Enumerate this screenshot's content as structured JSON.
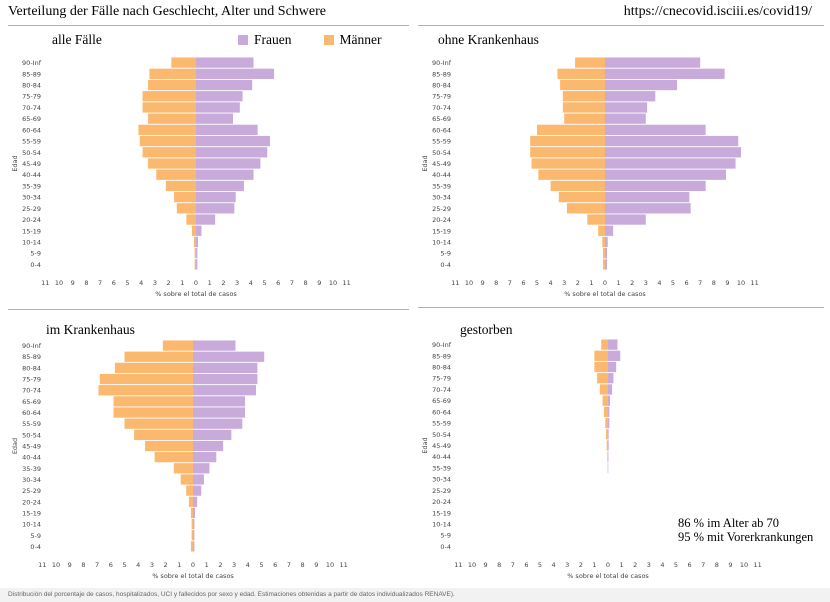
{
  "header": {
    "title": "Verteilung der Fälle nach Geschlecht, Alter und Schwere",
    "url": "https://cnecovid.isciii.es/covid19/"
  },
  "legend": {
    "female": "Frauen",
    "male": "Männer"
  },
  "colors": {
    "female": "#c9abdb",
    "male": "#fbb970"
  },
  "notes": {
    "line1": "86 % im Alter ab 70",
    "line2": "95 % mit Vorerkrankungen"
  },
  "footer": "Distribución del porcentaje de casos, hospitalizados, UCI y fallecidos por sexo y edad. Estimaciones obtenidas a partir de datos individualizados RENAVE).",
  "chart_data": [
    {
      "type": "bar",
      "title": "alle Fälle",
      "ylabel": "Edad",
      "xlabel": "% sobre el total de casos",
      "xticks": [
        "11",
        "10",
        "9",
        "8",
        "7",
        "6",
        "5",
        "4",
        "3",
        "2",
        "1",
        "0",
        "1",
        "2",
        "3",
        "4",
        "5",
        "6",
        "7",
        "8",
        "9",
        "10",
        "11"
      ],
      "categories": [
        "90-Inf",
        "85-89",
        "80-84",
        "75-79",
        "70-74",
        "65-69",
        "60-64",
        "55-59",
        "50-54",
        "45-49",
        "40-44",
        "35-39",
        "30-34",
        "25-29",
        "20-24",
        "15-19",
        "10-14",
        "5-9",
        "0-4"
      ],
      "series": [
        {
          "name": "Frauen",
          "values": [
            4.2,
            5.7,
            4.1,
            3.4,
            3.2,
            2.7,
            4.5,
            5.4,
            5.2,
            4.7,
            4.2,
            3.5,
            2.9,
            2.8,
            1.4,
            0.4,
            0.15,
            0.1,
            0.1
          ]
        },
        {
          "name": "Männer",
          "values": [
            1.8,
            3.4,
            3.5,
            3.9,
            3.9,
            3.5,
            4.2,
            4.1,
            3.9,
            3.5,
            2.9,
            2.2,
            1.6,
            1.4,
            0.7,
            0.3,
            0.15,
            0.1,
            0.1
          ]
        }
      ]
    },
    {
      "type": "bar",
      "title": "ohne Krankenhaus",
      "ylabel": "Edad",
      "xlabel": "% sobre el total de casos",
      "xticks": [
        "11",
        "10",
        "9",
        "8",
        "7",
        "6",
        "5",
        "4",
        "3",
        "2",
        "1",
        "0",
        "1",
        "2",
        "3",
        "4",
        "5",
        "6",
        "7",
        "8",
        "9",
        "10",
        "11"
      ],
      "categories": [
        "90-Inf",
        "85-89",
        "80-84",
        "75-79",
        "70-74",
        "65-69",
        "60-64",
        "55-59",
        "50-54",
        "45-49",
        "40-44",
        "35-39",
        "30-34",
        "25-29",
        "20-24",
        "15-19",
        "10-14",
        "5-9",
        "0-4"
      ],
      "series": [
        {
          "name": "Frauen",
          "values": [
            7.0,
            8.8,
            5.3,
            3.7,
            3.1,
            3.0,
            7.4,
            9.8,
            10.0,
            9.6,
            8.9,
            7.4,
            6.2,
            6.3,
            3.0,
            0.6,
            0.2,
            0.15,
            0.15
          ]
        },
        {
          "name": "Männer",
          "values": [
            2.2,
            3.5,
            3.3,
            3.1,
            3.1,
            3.0,
            5.0,
            5.5,
            5.5,
            5.4,
            4.9,
            4.0,
            3.4,
            2.8,
            1.3,
            0.5,
            0.2,
            0.15,
            0.15
          ]
        }
      ]
    },
    {
      "type": "bar",
      "title": "im Krankenhaus",
      "ylabel": "Edad",
      "xlabel": "% sobre el total de casos",
      "xticks": [
        "11",
        "10",
        "9",
        "8",
        "7",
        "6",
        "5",
        "4",
        "3",
        "2",
        "1",
        "0",
        "1",
        "2",
        "3",
        "4",
        "5",
        "6",
        "7",
        "8",
        "9",
        "10",
        "11"
      ],
      "categories": [
        "90-Inf",
        "85-89",
        "80-84",
        "75-79",
        "70-74",
        "65-69",
        "60-64",
        "55-59",
        "50-54",
        "45-49",
        "40-44",
        "35-39",
        "30-34",
        "25-29",
        "20-24",
        "15-19",
        "10-14",
        "5-9",
        "0-4"
      ],
      "series": [
        {
          "name": "Frauen",
          "values": [
            3.1,
            5.2,
            4.7,
            4.7,
            4.6,
            3.8,
            3.8,
            3.6,
            2.8,
            2.2,
            1.7,
            1.2,
            0.8,
            0.6,
            0.3,
            0.15,
            0.1,
            0.1,
            0.1
          ]
        },
        {
          "name": "Männer",
          "values": [
            2.2,
            5.0,
            5.7,
            6.8,
            6.9,
            5.8,
            5.8,
            5.0,
            4.3,
            3.5,
            2.8,
            1.4,
            0.9,
            0.5,
            0.3,
            0.15,
            0.1,
            0.1,
            0.15
          ]
        }
      ]
    },
    {
      "type": "bar",
      "title": "gestorben",
      "ylabel": "Edad",
      "xlabel": "% sobre el total de casos",
      "xticks": [
        "11",
        "10",
        "9",
        "8",
        "7",
        "6",
        "5",
        "4",
        "3",
        "2",
        "1",
        "0",
        "1",
        "2",
        "3",
        "4",
        "5",
        "6",
        "7",
        "8",
        "9",
        "10",
        "11"
      ],
      "categories": [
        "90-Inf",
        "85-89",
        "80-84",
        "75-79",
        "70-74",
        "65-69",
        "60-64",
        "55-59",
        "50-54",
        "45-49",
        "40-44",
        "35-39",
        "30-34",
        "25-29",
        "20-24",
        "15-19",
        "10-14",
        "5-9",
        "0-4"
      ],
      "series": [
        {
          "name": "Frauen",
          "values": [
            0.7,
            0.9,
            0.6,
            0.4,
            0.3,
            0.15,
            0.1,
            0.1,
            0.05,
            0.05,
            0.03,
            0.02,
            0,
            0,
            0,
            0,
            0,
            0,
            0
          ]
        },
        {
          "name": "Männer",
          "values": [
            0.5,
            1.0,
            1.0,
            0.8,
            0.6,
            0.4,
            0.3,
            0.2,
            0.15,
            0.1,
            0.05,
            0.03,
            0,
            0,
            0,
            0,
            0,
            0,
            0
          ]
        }
      ]
    }
  ]
}
